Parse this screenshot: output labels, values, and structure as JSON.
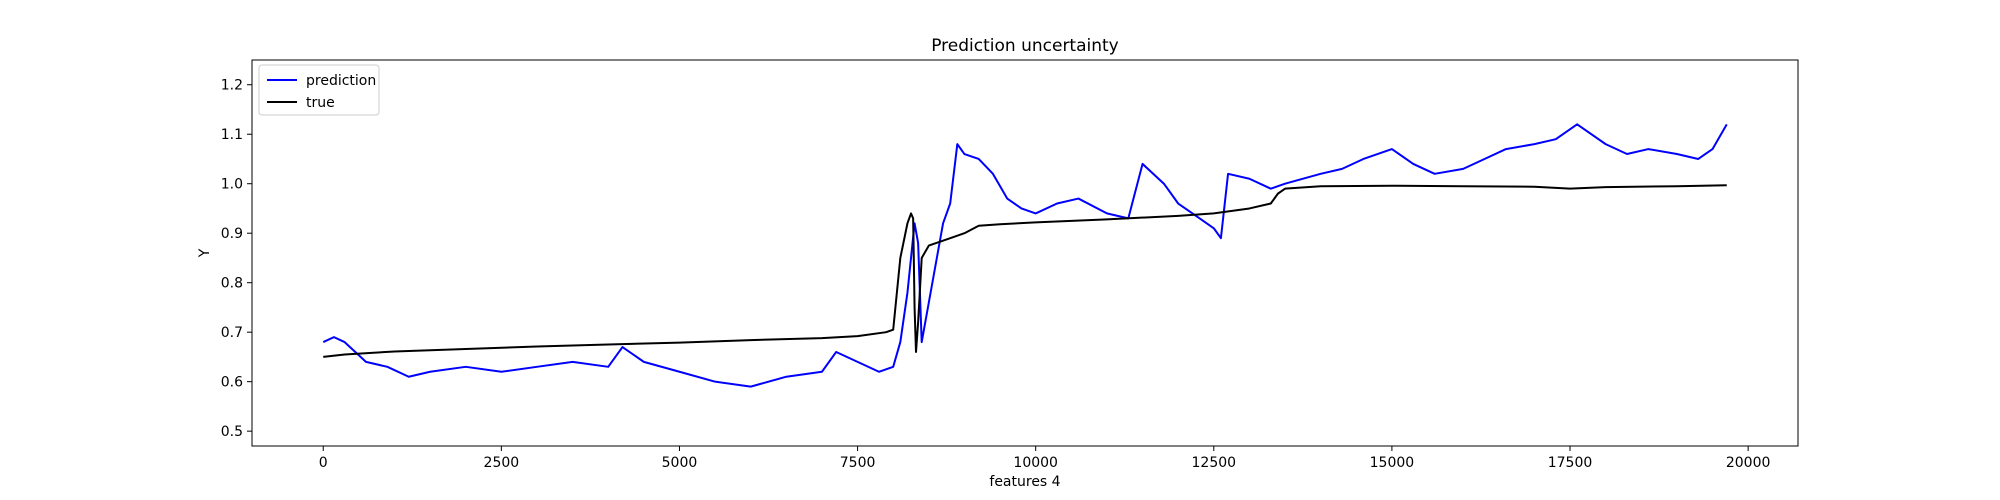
{
  "chart_data": {
    "type": "line",
    "title": "Prediction uncertainty",
    "xlabel": "features 4",
    "ylabel": "Y",
    "xlim": [
      -1000,
      20700
    ],
    "ylim": [
      0.47,
      1.25
    ],
    "xticks": [
      0,
      2500,
      5000,
      7500,
      10000,
      12500,
      15000,
      17500,
      20000
    ],
    "xtick_labels": [
      "0",
      "2500",
      "5000",
      "7500",
      "10000",
      "12500",
      "15000",
      "17500",
      "20000"
    ],
    "yticks": [
      0.5,
      0.6,
      0.7,
      0.8,
      0.9,
      1.0,
      1.1,
      1.2
    ],
    "ytick_labels": [
      "0.5",
      "0.6",
      "0.7",
      "0.8",
      "0.9",
      "1.0",
      "1.1",
      "1.2"
    ],
    "grid": false,
    "legend_position": "top-left",
    "series": [
      {
        "name": "prediction",
        "color": "#0000ff",
        "x": [
          0,
          150,
          300,
          450,
          600,
          900,
          1200,
          1500,
          2000,
          2500,
          3000,
          3500,
          4000,
          4200,
          4500,
          5000,
          5500,
          6000,
          6500,
          7000,
          7200,
          7500,
          7800,
          8000,
          8100,
          8200,
          8300,
          8350,
          8400,
          8450,
          8500,
          8600,
          8700,
          8800,
          8900,
          9000,
          9200,
          9400,
          9600,
          9800,
          10000,
          10300,
          10600,
          11000,
          11300,
          11500,
          11800,
          12000,
          12300,
          12500,
          12600,
          12700,
          13000,
          13300,
          13500,
          14000,
          14300,
          14600,
          15000,
          15300,
          15600,
          16000,
          16300,
          16600,
          17000,
          17300,
          17600,
          18000,
          18300,
          18600,
          19000,
          19300,
          19500,
          19700
        ],
        "y": [
          0.68,
          0.69,
          0.68,
          0.66,
          0.64,
          0.63,
          0.61,
          0.62,
          0.63,
          0.62,
          0.63,
          0.64,
          0.63,
          0.67,
          0.64,
          0.62,
          0.6,
          0.59,
          0.61,
          0.62,
          0.66,
          0.64,
          0.62,
          0.63,
          0.68,
          0.78,
          0.92,
          0.88,
          0.68,
          0.72,
          0.76,
          0.84,
          0.92,
          0.96,
          1.08,
          1.06,
          1.05,
          1.02,
          0.97,
          0.95,
          0.94,
          0.96,
          0.97,
          0.94,
          0.93,
          1.04,
          1.0,
          0.96,
          0.93,
          0.91,
          0.89,
          1.02,
          1.01,
          0.99,
          1.0,
          1.02,
          1.03,
          1.05,
          1.07,
          1.04,
          1.02,
          1.03,
          1.05,
          1.07,
          1.08,
          1.09,
          1.12,
          1.08,
          1.06,
          1.07,
          1.06,
          1.05,
          1.07,
          1.12
        ]
      },
      {
        "name": "true",
        "color": "#000000",
        "x": [
          0,
          300,
          1000,
          2000,
          3000,
          4000,
          5000,
          6000,
          7000,
          7500,
          7900,
          8000,
          8100,
          8200,
          8250,
          8280,
          8300,
          8320,
          8350,
          8400,
          8500,
          8800,
          9000,
          9200,
          9500,
          10000,
          11000,
          12000,
          12500,
          13000,
          13300,
          13400,
          13500,
          14000,
          15000,
          16000,
          17000,
          17500,
          18000,
          19000,
          19700
        ],
        "y": [
          0.65,
          0.655,
          0.661,
          0.666,
          0.671,
          0.675,
          0.679,
          0.684,
          0.688,
          0.692,
          0.7,
          0.705,
          0.85,
          0.92,
          0.94,
          0.93,
          0.75,
          0.66,
          0.72,
          0.85,
          0.875,
          0.89,
          0.9,
          0.915,
          0.918,
          0.922,
          0.928,
          0.935,
          0.94,
          0.95,
          0.96,
          0.98,
          0.99,
          0.995,
          0.996,
          0.995,
          0.994,
          0.99,
          0.993,
          0.995,
          0.997
        ]
      }
    ]
  }
}
